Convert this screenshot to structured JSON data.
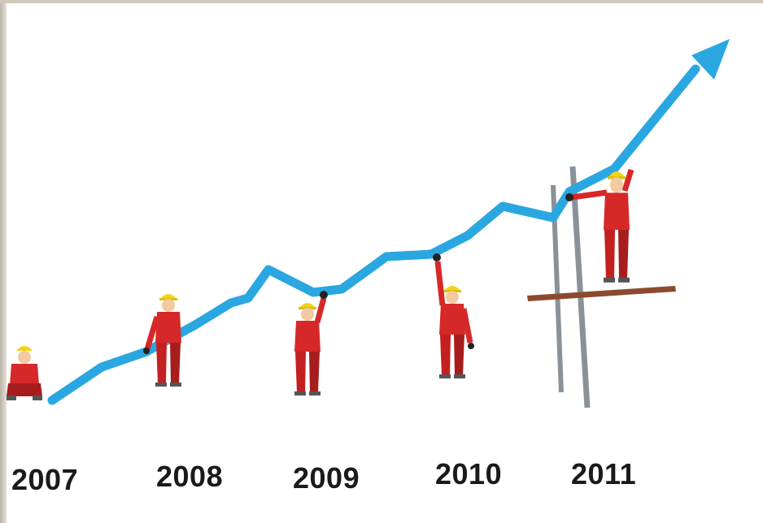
{
  "years": [
    "2007",
    "2008",
    "2009",
    "2010",
    "2011"
  ],
  "colors": {
    "arrow": "#2aa7e1",
    "worker_suit": "#d62828",
    "worker_suit_dark": "#a71d1d",
    "helmet": "#f2d31b",
    "skin": "#f3c9a1",
    "pole": "#8a9299",
    "plank": "#8b4a2e"
  },
  "icons": [
    "growth-arrow",
    "worker-figure",
    "scaffold-pole",
    "scaffold-plank"
  ]
}
